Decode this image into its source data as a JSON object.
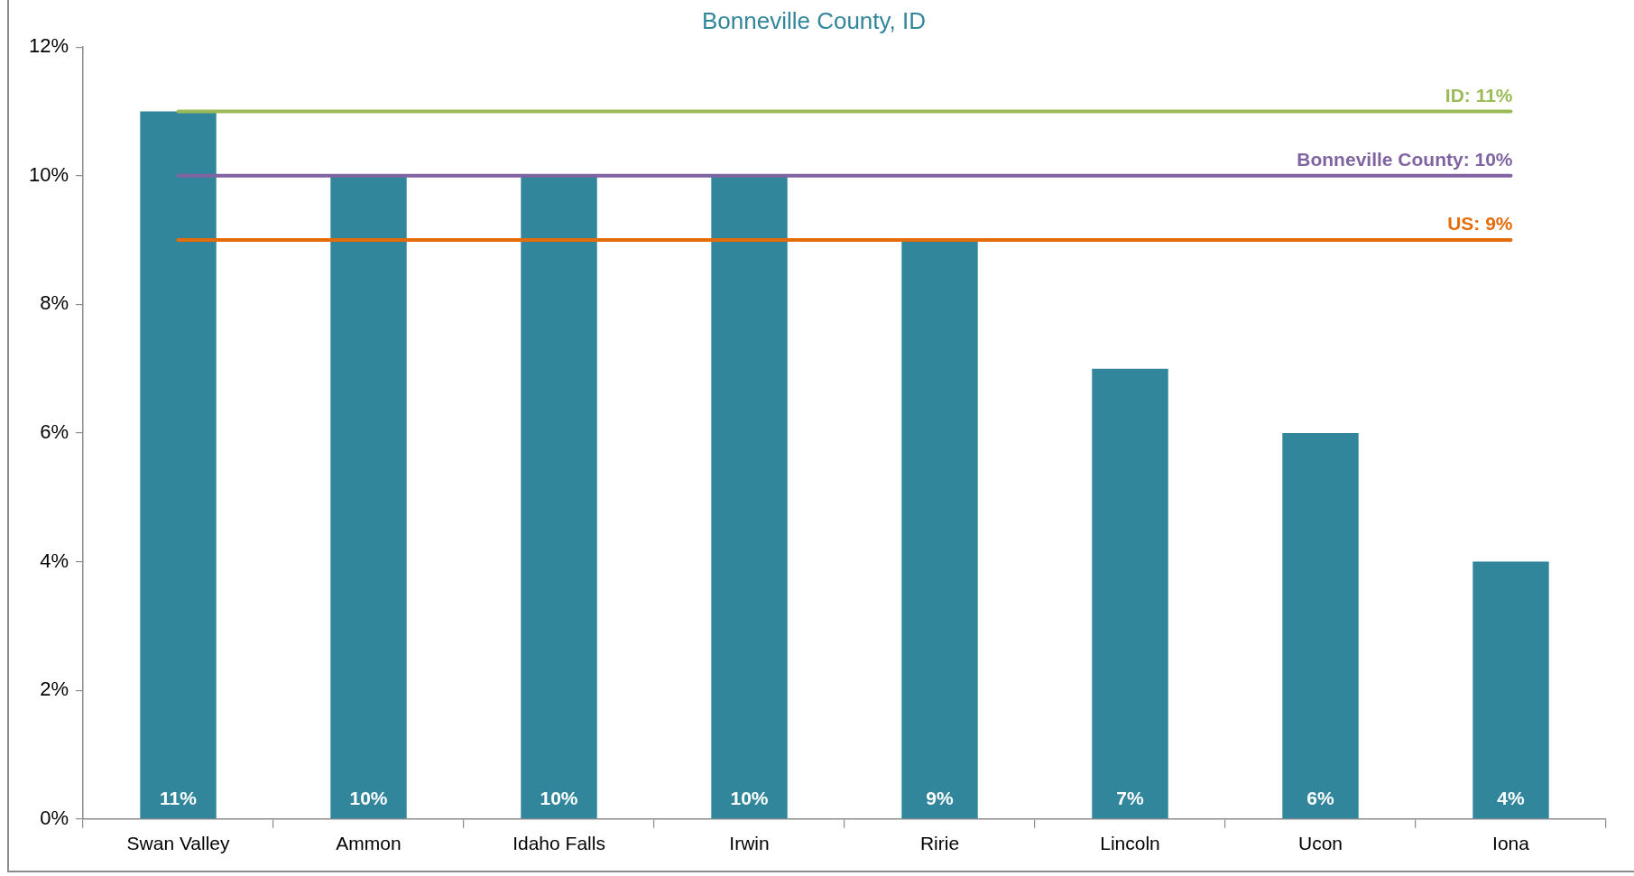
{
  "chart_data": {
    "type": "bar",
    "title": "Bonneville County, ID",
    "categories": [
      "Swan Valley",
      "Ammon",
      "Idaho Falls",
      "Irwin",
      "Ririe",
      "Lincoln",
      "Ucon",
      "Iona"
    ],
    "values": [
      11,
      10,
      10,
      10,
      9,
      7,
      6,
      4
    ],
    "color": "#31869b",
    "value_labels": [
      "11%",
      "10%",
      "10%",
      "10%",
      "9%",
      "7%",
      "6%",
      "4%"
    ],
    "ylim": [
      0,
      12
    ],
    "yticks": [
      {
        "value": 0,
        "label": "0%"
      },
      {
        "value": 2,
        "label": "2%"
      },
      {
        "value": 4,
        "label": "4%"
      },
      {
        "value": 6,
        "label": "6%"
      },
      {
        "value": 8,
        "label": "8%"
      },
      {
        "value": 10,
        "label": "10%"
      },
      {
        "value": 12,
        "label": "12%"
      }
    ],
    "ref_lines": [
      {
        "axis": "y",
        "value": 11,
        "label": "ID: 11%",
        "color": "#9bbb59"
      },
      {
        "axis": "y",
        "value": 10,
        "label": "Bonneville County: 10%",
        "color": "#8064a2"
      },
      {
        "axis": "y",
        "value": 9,
        "label": "US: 9%",
        "color": "#e46c0a"
      }
    ]
  }
}
